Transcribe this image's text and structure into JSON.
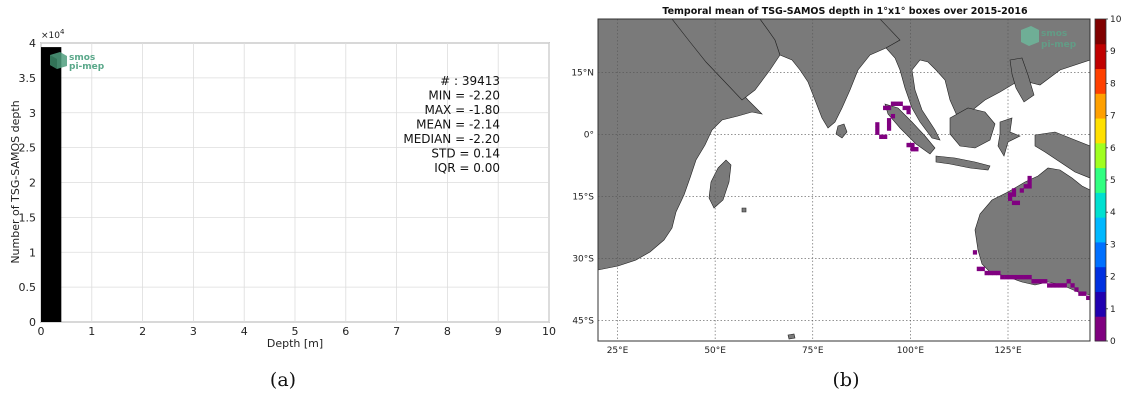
{
  "chart_data": [
    {
      "type": "bar",
      "panel_label": "(a)",
      "xlabel": "Depth [m]",
      "ylabel": "Number of TSG-SAMOS depth",
      "y_multiplier": "×10",
      "y_multiplier_exp": "4",
      "xlim": [
        0,
        10
      ],
      "ylim": [
        0,
        40000
      ],
      "xticks": [
        "0",
        "1",
        "2",
        "3",
        "4",
        "5",
        "6",
        "7",
        "8",
        "9",
        "10"
      ],
      "yticks": [
        "0",
        "0.5",
        "1",
        "1.5",
        "2",
        "2.5",
        "3",
        "3.5",
        "4"
      ],
      "grid": true,
      "bins": [
        {
          "x0": 0,
          "x1": 0.4,
          "count": 39413
        }
      ],
      "bar_color": "#000000",
      "stats": [
        {
          "label": "#",
          "value": "39413"
        },
        {
          "label": "MIN",
          "value": "-2.20"
        },
        {
          "label": "MAX",
          "value": "-1.80"
        },
        {
          "label": "MEAN",
          "value": "-2.14"
        },
        {
          "label": "MEDIAN",
          "value": "-2.20"
        },
        {
          "label": "STD",
          "value": "0.14"
        },
        {
          "label": "IQR",
          "value": "0.00"
        }
      ],
      "logo": [
        "smos",
        "pi-mep"
      ]
    },
    {
      "type": "heatmap",
      "panel_label": "(b)",
      "title": "Temporal mean of TSG-SAMOS depth in 1°x1° boxes over 2015-2016",
      "xlim": [
        20,
        146
      ],
      "ylim": [
        -50,
        28
      ],
      "xticks": [
        {
          "value": 25,
          "label": "25°E"
        },
        {
          "value": 50,
          "label": "50°E"
        },
        {
          "value": 75,
          "label": "75°E"
        },
        {
          "value": 100,
          "label": "100°E"
        },
        {
          "value": 125,
          "label": "125°E"
        }
      ],
      "yticks": [
        {
          "value": 15,
          "label": "15°N"
        },
        {
          "value": 0,
          "label": "0°"
        },
        {
          "value": -15,
          "label": "15°S"
        },
        {
          "value": -30,
          "label": "30°S"
        },
        {
          "value": -45,
          "label": "45°S"
        }
      ],
      "grid": true,
      "colorbar": {
        "min": 0,
        "max": 10,
        "ticks": [
          "0",
          "1",
          "2",
          "3",
          "4",
          "5",
          "6",
          "7",
          "8",
          "9",
          "10"
        ],
        "colors": [
          "#7f007f",
          "#2000b0",
          "#0030e0",
          "#0070ff",
          "#00b8ff",
          "#00e0d0",
          "#30ff80",
          "#a0ff20",
          "#ffe000",
          "#ffa000",
          "#ff4000",
          "#c00000",
          "#800000"
        ]
      },
      "land_color": "#7a7a7a",
      "ocean_color": "#ffffff",
      "data_color": "#800080",
      "value_everywhere_observed": 0,
      "observed_cells_lonlat": [
        [
          93,
          6
        ],
        [
          94,
          6
        ],
        [
          95,
          7
        ],
        [
          96,
          7
        ],
        [
          97,
          7
        ],
        [
          98,
          6
        ],
        [
          99,
          6
        ],
        [
          99,
          5
        ],
        [
          91,
          2
        ],
        [
          91,
          1
        ],
        [
          91,
          0
        ],
        [
          92,
          -1
        ],
        [
          93,
          -1
        ],
        [
          94,
          1
        ],
        [
          94,
          2
        ],
        [
          94,
          3
        ],
        [
          95,
          4
        ],
        [
          99,
          -3
        ],
        [
          100,
          -3
        ],
        [
          100,
          -4
        ],
        [
          101,
          -4
        ],
        [
          126,
          -14
        ],
        [
          126,
          -15
        ],
        [
          125,
          -15
        ],
        [
          125,
          -16
        ],
        [
          126,
          -17
        ],
        [
          127,
          -17
        ],
        [
          128,
          -14
        ],
        [
          129,
          -13
        ],
        [
          130,
          -13
        ],
        [
          130,
          -12
        ],
        [
          130,
          -11
        ],
        [
          116,
          -29
        ],
        [
          117,
          -33
        ],
        [
          118,
          -33
        ],
        [
          119,
          -34
        ],
        [
          120,
          -34
        ],
        [
          121,
          -34
        ],
        [
          122,
          -34
        ],
        [
          123,
          -35
        ],
        [
          124,
          -35
        ],
        [
          125,
          -35
        ],
        [
          126,
          -35
        ],
        [
          127,
          -35
        ],
        [
          128,
          -35
        ],
        [
          129,
          -35
        ],
        [
          130,
          -35
        ],
        [
          131,
          -36
        ],
        [
          132,
          -36
        ],
        [
          133,
          -36
        ],
        [
          134,
          -36
        ],
        [
          135,
          -37
        ],
        [
          136,
          -37
        ],
        [
          137,
          -37
        ],
        [
          138,
          -37
        ],
        [
          139,
          -37
        ],
        [
          140,
          -36
        ],
        [
          141,
          -37
        ],
        [
          142,
          -38
        ],
        [
          143,
          -39
        ],
        [
          144,
          -39
        ],
        [
          145,
          -40
        ]
      ],
      "logo": [
        "smos",
        "pi-mep"
      ]
    }
  ]
}
